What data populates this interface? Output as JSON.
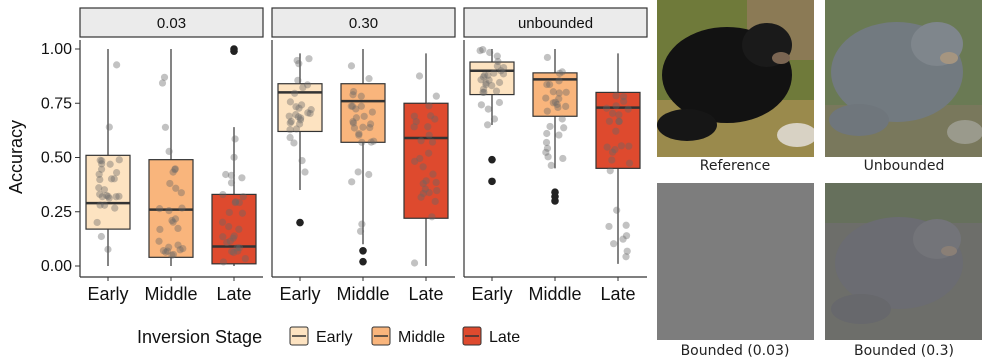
{
  "chart_data": {
    "type": "box",
    "ylabel": "Accuracy",
    "ylim": [
      0,
      1.06
    ],
    "yticks": [
      "0.00",
      "0.25",
      "0.50",
      "0.75",
      "1.00"
    ],
    "categories": [
      "Early",
      "Middle",
      "Late"
    ],
    "colors": {
      "Early": "#fde3c1",
      "Middle": "#f9b57c",
      "Late": "#de4a2e"
    },
    "legend": {
      "title": "Inversion Stage",
      "position": "bottom",
      "items": [
        "Early",
        "Middle",
        "Late"
      ]
    },
    "facets": [
      {
        "label": "0.03",
        "boxes": [
          {
            "stage": "Early",
            "q1": 0.17,
            "median": 0.29,
            "q3": 0.51,
            "whisker_low": 0.0,
            "whisker_high": 1.0,
            "outliers": []
          },
          {
            "stage": "Middle",
            "q1": 0.04,
            "median": 0.26,
            "q3": 0.49,
            "whisker_low": 0.0,
            "whisker_high": 1.0,
            "outliers": []
          },
          {
            "stage": "Late",
            "q1": 0.01,
            "median": 0.09,
            "q3": 0.33,
            "whisker_low": 0.0,
            "whisker_high": 0.64,
            "outliers": [
              0.99,
              1.0
            ]
          }
        ]
      },
      {
        "label": "0.30",
        "boxes": [
          {
            "stage": "Early",
            "q1": 0.62,
            "median": 0.8,
            "q3": 0.84,
            "whisker_low": 0.35,
            "whisker_high": 0.98,
            "outliers": [
              0.2
            ]
          },
          {
            "stage": "Middle",
            "q1": 0.57,
            "median": 0.76,
            "q3": 0.84,
            "whisker_low": 0.1,
            "whisker_high": 1.0,
            "outliers": [
              0.02,
              0.07
            ]
          },
          {
            "stage": "Late",
            "q1": 0.22,
            "median": 0.59,
            "q3": 0.75,
            "whisker_low": 0.0,
            "whisker_high": 0.98,
            "outliers": []
          }
        ]
      },
      {
        "label": "unbounded",
        "boxes": [
          {
            "stage": "Early",
            "q1": 0.79,
            "median": 0.9,
            "q3": 0.94,
            "whisker_low": 0.65,
            "whisker_high": 1.0,
            "outliers": [
              0.39,
              0.49
            ]
          },
          {
            "stage": "Middle",
            "q1": 0.69,
            "median": 0.86,
            "q3": 0.89,
            "whisker_low": 0.45,
            "whisker_high": 1.0,
            "outliers": [
              0.3,
              0.32,
              0.34
            ]
          },
          {
            "stage": "Late",
            "q1": 0.45,
            "median": 0.73,
            "q3": 0.8,
            "whisker_low": 0.01,
            "whisker_high": 0.98,
            "outliers": []
          }
        ]
      }
    ]
  },
  "images": {
    "reference_caption": "Reference",
    "unbounded_caption": "Unbounded",
    "bounded_003_caption": "Bounded (0.03)",
    "bounded_03_caption": "Bounded (0.3)"
  }
}
